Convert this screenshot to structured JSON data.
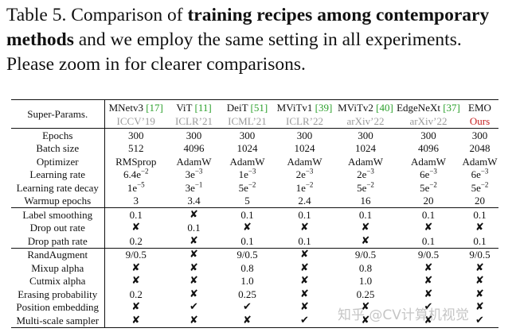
{
  "caption": {
    "prefix": "Table 5. Comparison of ",
    "bold1": "training recipes among contemporary methods",
    "suffix": " and we employ the same setting in all experiments. Please zoom in for clearer comparisons."
  },
  "header": {
    "first": "Super-Params.",
    "methods": [
      {
        "name": "MNetv3",
        "cite": "[17]",
        "venue": "ICCV’19",
        "venue_color": "gray"
      },
      {
        "name": "ViT",
        "cite": "[11]",
        "venue": "ICLR’21",
        "venue_color": "gray"
      },
      {
        "name": "DeiT",
        "cite": "[51]",
        "venue": "ICML’21",
        "venue_color": "gray"
      },
      {
        "name": "MViTv1",
        "cite": "[39]",
        "venue": "ICLR’22",
        "venue_color": "gray"
      },
      {
        "name": "MViTv2",
        "cite": "[40]",
        "venue": "arXiv’22",
        "venue_color": "gray"
      },
      {
        "name": "EdgeNeXt",
        "cite": "[37]",
        "venue": "arXiv’22",
        "venue_color": "gray"
      },
      {
        "name": "EMO",
        "cite": "",
        "venue": "Ours",
        "venue_color": "red"
      }
    ]
  },
  "groups": [
    [
      {
        "label": "Epochs",
        "values": [
          "300",
          "300",
          "300",
          "300",
          "300",
          "300",
          "300"
        ]
      },
      {
        "label": "Batch size",
        "values": [
          "512",
          "4096",
          "1024",
          "1024",
          "1024",
          "4096",
          "2048"
        ]
      },
      {
        "label": "Optimizer",
        "values": [
          "RMSprop",
          "AdamW",
          "AdamW",
          "AdamW",
          "AdamW",
          "AdamW",
          "AdamW"
        ]
      },
      {
        "label": "Learning rate",
        "values": [
          "6.4e^-2",
          "3e^-3",
          "1e^-3",
          "2e^-3",
          "2e^-3",
          "6e^-3",
          "6e^-3"
        ]
      },
      {
        "label": "Learning rate decay",
        "values": [
          "1e^-5",
          "3e^-1",
          "5e^-2",
          "1e^-2",
          "5e^-2",
          "5e^-2",
          "5e^-2"
        ]
      },
      {
        "label": "Warmup epochs",
        "values": [
          "3",
          "3.4",
          "5",
          "2.4",
          "16",
          "20",
          "20"
        ]
      }
    ],
    [
      {
        "label": "Label smoothing",
        "values": [
          "0.1",
          "✘",
          "0.1",
          "0.1",
          "0.1",
          "0.1",
          "0.1"
        ]
      },
      {
        "label": "Drop out rate",
        "values": [
          "✘",
          "0.1",
          "✘",
          "✘",
          "✘",
          "✘",
          "✘"
        ]
      },
      {
        "label": "Drop path rate",
        "values": [
          "0.2",
          "✘",
          "0.1",
          "0.1",
          "✘",
          "0.1",
          "0.1"
        ]
      }
    ],
    [
      {
        "label": "RandAugment",
        "values": [
          "9/0.5",
          "✘",
          "9/0.5",
          "✘",
          "9/0.5",
          "9/0.5",
          "9/0.5"
        ]
      },
      {
        "label": "Mixup alpha",
        "values": [
          "✘",
          "✘",
          "0.8",
          "✘",
          "0.8",
          "✘",
          "✘"
        ]
      },
      {
        "label": "Cutmix alpha",
        "values": [
          "✘",
          "✘",
          "1.0",
          "✘",
          "1.0",
          "✘",
          "✘"
        ]
      },
      {
        "label": "Erasing probability",
        "values": [
          "0.2",
          "✘",
          "0.25",
          "✘",
          "0.25",
          "✘",
          "✘"
        ]
      },
      {
        "label": "Position embedding",
        "values": [
          "✘",
          "✔",
          "✔",
          "✘",
          "✘",
          "✔",
          "✘"
        ]
      },
      {
        "label": "Multi-scale sampler",
        "values": [
          "✘",
          "✘",
          "✘",
          "✔",
          "✘",
          "✘",
          "✔"
        ]
      }
    ]
  ],
  "watermark": "知乎 @CV计算机视觉"
}
